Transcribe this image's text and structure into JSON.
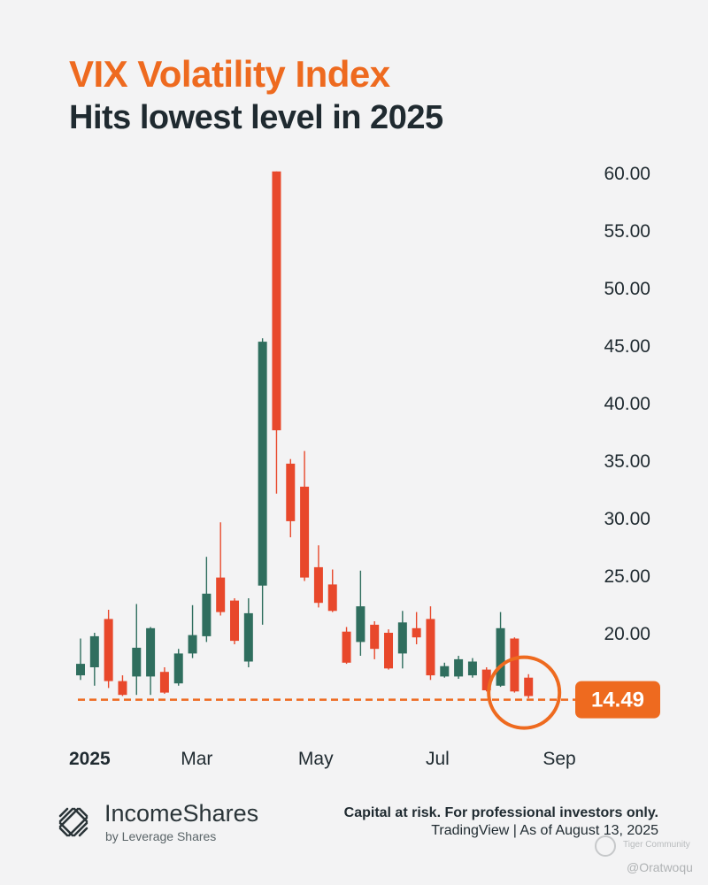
{
  "header": {
    "title": "VIX Volatility Index",
    "subtitle": "Hits lowest level in 2025"
  },
  "colors": {
    "accent": "#ee6a1f",
    "up": "#2f6e5e",
    "down": "#e8482b",
    "text": "#1f2a30",
    "background": "#f3f3f4"
  },
  "chart_data": {
    "type": "candlestick",
    "title": "VIX Volatility Index",
    "subtitle": "Hits lowest level in 2025",
    "y_axis": {
      "position": "right",
      "min": 13,
      "max": 61,
      "ticks": [
        "60.00",
        "55.00",
        "50.00",
        "45.00",
        "40.00",
        "35.00",
        "30.00",
        "25.00",
        "20.00"
      ],
      "tick_values": [
        60,
        55,
        50,
        45,
        40,
        35,
        30,
        25,
        20
      ]
    },
    "x_axis": {
      "ticks": [
        {
          "label": "2025",
          "week": 0,
          "bold": true
        },
        {
          "label": "Mar",
          "week": 8.3
        },
        {
          "label": "May",
          "week": 16.8
        },
        {
          "label": "Jul",
          "week": 25.5
        },
        {
          "label": "Sep",
          "week": 34.2
        }
      ]
    },
    "week_count": 34,
    "candles": [
      {
        "week": 0,
        "open": 16.3,
        "close": 17.3,
        "high": 19.5,
        "low": 15.9
      },
      {
        "week": 1,
        "open": 17.0,
        "close": 19.7,
        "high": 20.0,
        "low": 15.4
      },
      {
        "week": 2,
        "open": 21.2,
        "close": 15.8,
        "high": 22.0,
        "low": 15.2
      },
      {
        "week": 3,
        "open": 15.8,
        "close": 14.6,
        "high": 16.3,
        "low": 14.5
      },
      {
        "week": 4,
        "open": 16.2,
        "close": 18.7,
        "high": 22.5,
        "low": 14.6
      },
      {
        "week": 5,
        "open": 16.2,
        "close": 20.4,
        "high": 20.5,
        "low": 14.6
      },
      {
        "week": 6,
        "open": 16.6,
        "close": 14.8,
        "high": 17.0,
        "low": 14.7
      },
      {
        "week": 7,
        "open": 15.6,
        "close": 18.2,
        "high": 18.6,
        "low": 15.4
      },
      {
        "week": 8,
        "open": 18.2,
        "close": 19.8,
        "high": 22.4,
        "low": 17.8
      },
      {
        "week": 9,
        "open": 19.7,
        "close": 23.4,
        "high": 26.6,
        "low": 19.2
      },
      {
        "week": 10,
        "open": 24.8,
        "close": 21.8,
        "high": 29.6,
        "low": 21.5
      },
      {
        "week": 11,
        "open": 22.8,
        "close": 19.3,
        "high": 23.0,
        "low": 19.0
      },
      {
        "week": 12,
        "open": 17.5,
        "close": 21.7,
        "high": 23.0,
        "low": 17.0
      },
      {
        "week": 13,
        "open": 24.1,
        "close": 45.3,
        "high": 45.6,
        "low": 20.7
      },
      {
        "week": 14,
        "open": 60.1,
        "close": 37.6,
        "high": 60.1,
        "low": 32.1
      },
      {
        "week": 15,
        "open": 34.7,
        "close": 29.7,
        "high": 35.1,
        "low": 28.3
      },
      {
        "week": 16,
        "open": 32.7,
        "close": 24.8,
        "high": 35.8,
        "low": 24.5
      },
      {
        "week": 17,
        "open": 25.7,
        "close": 22.6,
        "high": 27.6,
        "low": 22.2
      },
      {
        "week": 18,
        "open": 24.2,
        "close": 21.9,
        "high": 25.5,
        "low": 21.8
      },
      {
        "week": 19,
        "open": 20.1,
        "close": 17.4,
        "high": 20.5,
        "low": 17.3
      },
      {
        "week": 20,
        "open": 19.2,
        "close": 22.3,
        "high": 25.4,
        "low": 18.0
      },
      {
        "week": 21,
        "open": 20.7,
        "close": 18.6,
        "high": 21.0,
        "low": 17.7
      },
      {
        "week": 22,
        "open": 20.0,
        "close": 16.9,
        "high": 20.3,
        "low": 16.8
      },
      {
        "week": 23,
        "open": 18.2,
        "close": 20.9,
        "high": 21.9,
        "low": 16.9
      },
      {
        "week": 24,
        "open": 20.4,
        "close": 19.6,
        "high": 21.8,
        "low": 19.0
      },
      {
        "week": 25,
        "open": 21.2,
        "close": 16.3,
        "high": 22.3,
        "low": 15.9
      },
      {
        "week": 26,
        "open": 16.2,
        "close": 17.1,
        "high": 17.4,
        "low": 16.1
      },
      {
        "week": 27,
        "open": 16.2,
        "close": 17.7,
        "high": 18.0,
        "low": 16.0
      },
      {
        "week": 28,
        "open": 16.3,
        "close": 17.5,
        "high": 17.8,
        "low": 16.1
      },
      {
        "week": 29,
        "open": 16.8,
        "close": 15.0,
        "high": 17.0,
        "low": 14.9
      },
      {
        "week": 30,
        "open": 15.4,
        "close": 20.4,
        "high": 21.8,
        "low": 15.3
      },
      {
        "week": 31,
        "open": 19.5,
        "close": 14.9,
        "high": 19.6,
        "low": 14.8
      },
      {
        "week": 32,
        "open": 16.1,
        "close": 14.5,
        "high": 16.4,
        "low": 14.3
      }
    ],
    "reference_line": {
      "value": 14.49,
      "label": "14.49",
      "style": "dashed"
    },
    "highlight": {
      "week": 32,
      "value": 14.49,
      "shape": "circle"
    },
    "grid": false,
    "legend": "none"
  },
  "footer": {
    "brand": "IncomeShares",
    "brand_sub": "by Leverage Shares",
    "disclaimer": "Capital at risk. For professional investors only.",
    "source": "TradingView | As of August 13, 2025",
    "logo_icon": "incomeshares-logo-icon"
  },
  "watermark": {
    "name": "Tiger Community",
    "handle": "@Oratwoqu",
    "icon": "tiger-icon"
  }
}
